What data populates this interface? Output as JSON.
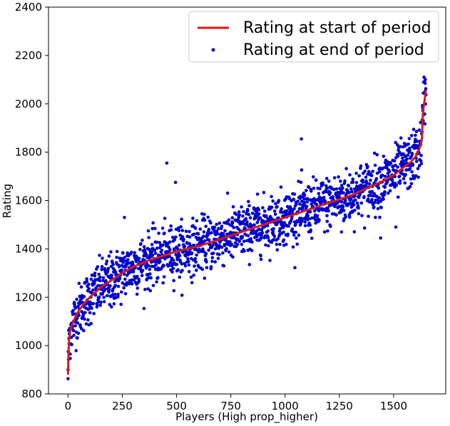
{
  "chart_data": {
    "type": "scatter",
    "title": "",
    "xlabel": "Players (High prop_higher)",
    "ylabel": "Rating",
    "xlim": [
      -90,
      1740
    ],
    "ylim": [
      800,
      2400
    ],
    "xticks": [
      0,
      250,
      500,
      750,
      1000,
      1250,
      1500
    ],
    "yticks": [
      800,
      1000,
      1200,
      1400,
      1600,
      1800,
      2000,
      2200,
      2400
    ],
    "grid": false,
    "legend_position": "top-right",
    "n_players": 1650,
    "series": [
      {
        "name": "Rating at start of period",
        "kind": "line",
        "color": "#d7191c",
        "x": [
          0,
          2,
          5,
          10,
          20,
          35,
          50,
          75,
          100,
          150,
          200,
          250,
          300,
          350,
          400,
          450,
          500,
          550,
          600,
          650,
          700,
          750,
          800,
          850,
          900,
          950,
          1000,
          1050,
          1100,
          1150,
          1200,
          1250,
          1300,
          1350,
          1400,
          1450,
          1500,
          1550,
          1580,
          1600,
          1615,
          1625,
          1630,
          1635,
          1640,
          1645,
          1648
        ],
        "y": [
          880,
          965,
          1030,
          1060,
          1090,
          1120,
          1145,
          1175,
          1200,
          1240,
          1270,
          1300,
          1325,
          1345,
          1360,
          1375,
          1390,
          1400,
          1412,
          1425,
          1440,
          1455,
          1470,
          1485,
          1500,
          1515,
          1530,
          1545,
          1560,
          1575,
          1590,
          1605,
          1620,
          1640,
          1660,
          1680,
          1705,
          1740,
          1760,
          1780,
          1805,
          1830,
          1850,
          1960,
          2000,
          2030,
          2055
        ]
      },
      {
        "name": "Rating at end of period",
        "kind": "scatter",
        "color": "#0000cc",
        "jitter_sd": 55,
        "outliers": [
          [
            0,
            900
          ],
          [
            10,
            965
          ],
          [
            455,
            1755
          ],
          [
            495,
            1675
          ],
          [
            1075,
            1855
          ],
          [
            1510,
            1490
          ],
          [
            1440,
            1445
          ],
          [
            1640,
            2110
          ],
          [
            1645,
            2085
          ],
          [
            1600,
            1870
          ],
          [
            260,
            1530
          ],
          [
            520,
            1305
          ],
          [
            790,
            1540
          ],
          [
            920,
            1505
          ],
          [
            200,
            1160
          ],
          [
            1260,
            1470
          ]
        ]
      }
    ]
  },
  "legend": {
    "items": [
      {
        "label": "Rating at start of period",
        "marker": "line",
        "color": "#d7191c"
      },
      {
        "label": "Rating at end of period",
        "marker": "dot",
        "color": "#0000cc"
      }
    ]
  }
}
